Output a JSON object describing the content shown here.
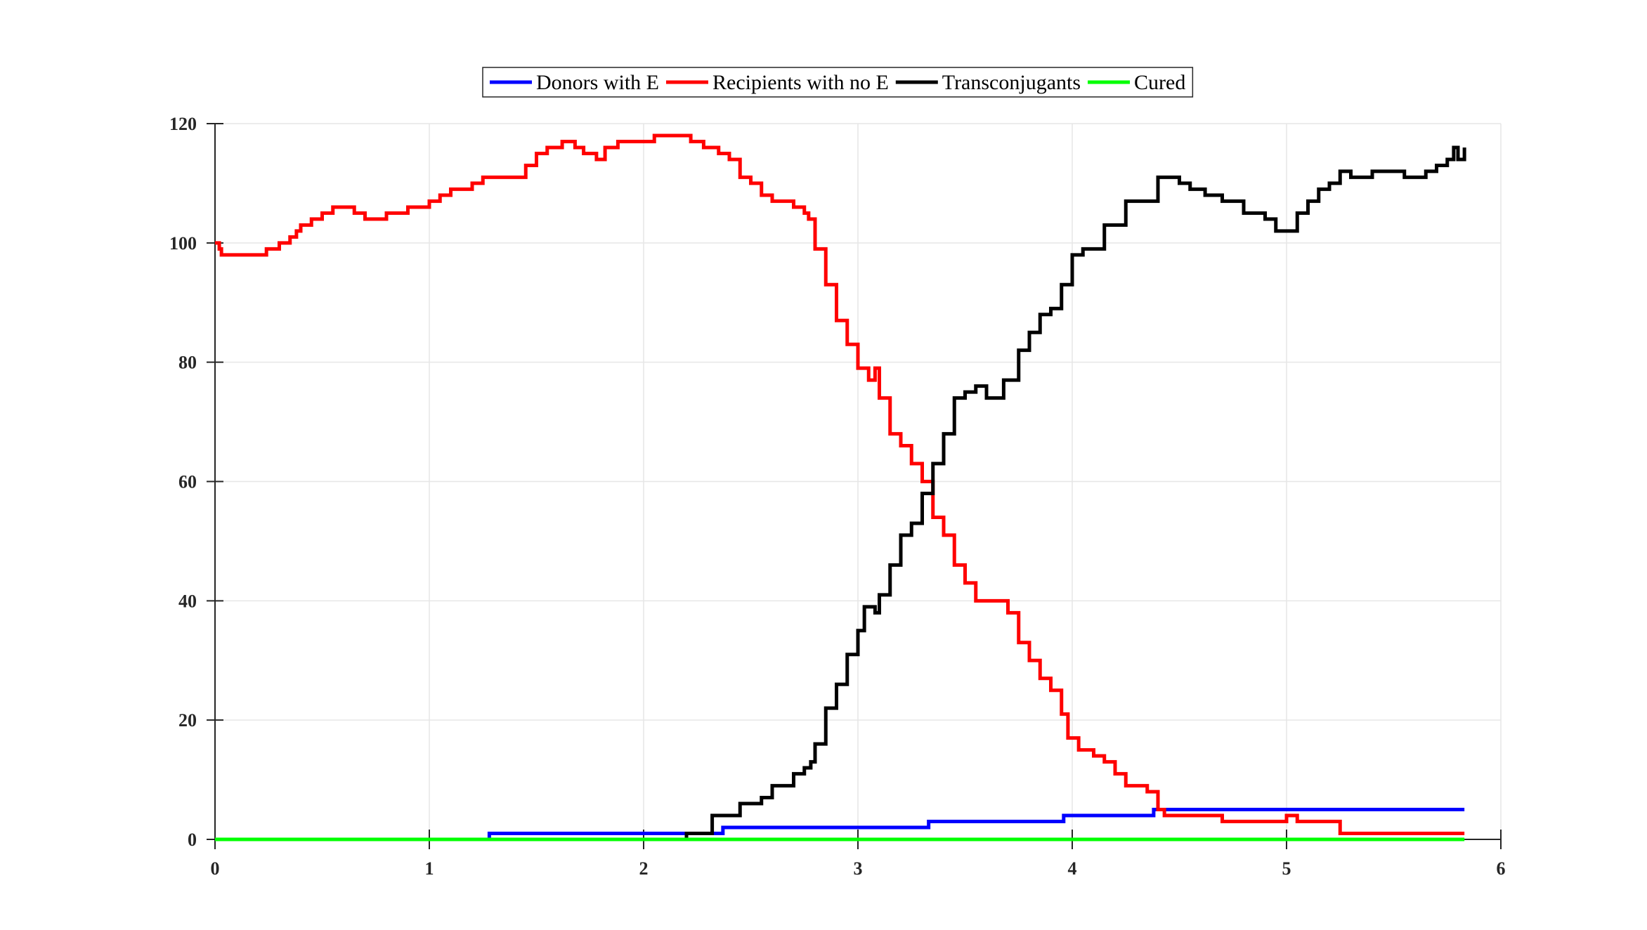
{
  "chart_data": {
    "type": "line",
    "title": "",
    "xlabel": "",
    "ylabel": "",
    "xlim": [
      0,
      6
    ],
    "ylim": [
      0,
      120
    ],
    "xticks": [
      0,
      1,
      2,
      3,
      4,
      5,
      6
    ],
    "yticks": [
      0,
      20,
      40,
      60,
      80,
      100,
      120
    ],
    "grid": true,
    "legend_position": "top-center",
    "series": [
      {
        "name": "Donors with E",
        "color": "#0000ff",
        "points": [
          [
            0,
            0
          ],
          [
            1.27,
            0
          ],
          [
            1.28,
            1
          ],
          [
            2.36,
            1
          ],
          [
            2.37,
            2
          ],
          [
            3.32,
            2
          ],
          [
            3.33,
            3
          ],
          [
            3.95,
            3
          ],
          [
            3.96,
            4
          ],
          [
            4.37,
            4
          ],
          [
            4.38,
            5
          ],
          [
            5.83,
            5
          ]
        ]
      },
      {
        "name": "Recipients with no E",
        "color": "#ff0000",
        "points": [
          [
            0,
            100
          ],
          [
            0.02,
            99
          ],
          [
            0.03,
            98
          ],
          [
            0.2,
            98
          ],
          [
            0.24,
            99
          ],
          [
            0.3,
            100
          ],
          [
            0.35,
            101
          ],
          [
            0.38,
            102
          ],
          [
            0.4,
            103
          ],
          [
            0.45,
            104
          ],
          [
            0.5,
            105
          ],
          [
            0.55,
            106
          ],
          [
            0.6,
            106
          ],
          [
            0.65,
            105
          ],
          [
            0.7,
            104
          ],
          [
            0.8,
            105
          ],
          [
            0.9,
            106
          ],
          [
            1.0,
            107
          ],
          [
            1.05,
            108
          ],
          [
            1.1,
            109
          ],
          [
            1.15,
            109
          ],
          [
            1.2,
            110
          ],
          [
            1.25,
            111
          ],
          [
            1.3,
            111
          ],
          [
            1.4,
            111
          ],
          [
            1.45,
            113
          ],
          [
            1.5,
            115
          ],
          [
            1.55,
            116
          ],
          [
            1.62,
            117
          ],
          [
            1.68,
            116
          ],
          [
            1.72,
            115
          ],
          [
            1.78,
            114
          ],
          [
            1.82,
            116
          ],
          [
            1.88,
            117
          ],
          [
            1.95,
            117
          ],
          [
            2.05,
            118
          ],
          [
            2.15,
            118
          ],
          [
            2.22,
            117
          ],
          [
            2.28,
            116
          ],
          [
            2.35,
            115
          ],
          [
            2.4,
            114
          ],
          [
            2.45,
            111
          ],
          [
            2.5,
            110
          ],
          [
            2.55,
            108
          ],
          [
            2.6,
            107
          ],
          [
            2.7,
            106
          ],
          [
            2.75,
            105
          ],
          [
            2.77,
            104
          ],
          [
            2.8,
            99
          ],
          [
            2.85,
            93
          ],
          [
            2.9,
            87
          ],
          [
            2.95,
            83
          ],
          [
            3.0,
            79
          ],
          [
            3.05,
            77
          ],
          [
            3.08,
            79
          ],
          [
            3.1,
            74
          ],
          [
            3.15,
            68
          ],
          [
            3.2,
            66
          ],
          [
            3.25,
            63
          ],
          [
            3.3,
            60
          ],
          [
            3.35,
            54
          ],
          [
            3.4,
            51
          ],
          [
            3.45,
            46
          ],
          [
            3.5,
            43
          ],
          [
            3.55,
            40
          ],
          [
            3.65,
            40
          ],
          [
            3.7,
            38
          ],
          [
            3.75,
            33
          ],
          [
            3.8,
            30
          ],
          [
            3.85,
            27
          ],
          [
            3.9,
            25
          ],
          [
            3.95,
            21
          ],
          [
            3.98,
            17
          ],
          [
            4.03,
            15
          ],
          [
            4.1,
            14
          ],
          [
            4.15,
            13
          ],
          [
            4.2,
            11
          ],
          [
            4.25,
            9
          ],
          [
            4.35,
            8
          ],
          [
            4.4,
            5
          ],
          [
            4.43,
            4
          ],
          [
            4.6,
            4
          ],
          [
            4.7,
            3
          ],
          [
            4.95,
            3
          ],
          [
            5.0,
            4
          ],
          [
            5.05,
            3
          ],
          [
            5.2,
            3
          ],
          [
            5.25,
            1
          ],
          [
            5.83,
            1
          ]
        ]
      },
      {
        "name": "Transconjugants",
        "color": "#000000",
        "points": [
          [
            2.14,
            0
          ],
          [
            2.2,
            1
          ],
          [
            2.28,
            1
          ],
          [
            2.32,
            4
          ],
          [
            2.45,
            6
          ],
          [
            2.55,
            7
          ],
          [
            2.6,
            9
          ],
          [
            2.65,
            9
          ],
          [
            2.7,
            11
          ],
          [
            2.75,
            12
          ],
          [
            2.78,
            13
          ],
          [
            2.8,
            16
          ],
          [
            2.85,
            22
          ],
          [
            2.9,
            26
          ],
          [
            2.95,
            31
          ],
          [
            3.0,
            35
          ],
          [
            3.03,
            39
          ],
          [
            3.08,
            38
          ],
          [
            3.1,
            41
          ],
          [
            3.15,
            46
          ],
          [
            3.2,
            51
          ],
          [
            3.25,
            53
          ],
          [
            3.3,
            58
          ],
          [
            3.35,
            63
          ],
          [
            3.4,
            68
          ],
          [
            3.45,
            74
          ],
          [
            3.5,
            75
          ],
          [
            3.55,
            76
          ],
          [
            3.6,
            74
          ],
          [
            3.68,
            77
          ],
          [
            3.75,
            82
          ],
          [
            3.8,
            85
          ],
          [
            3.85,
            88
          ],
          [
            3.9,
            89
          ],
          [
            3.95,
            93
          ],
          [
            4.0,
            98
          ],
          [
            4.05,
            99
          ],
          [
            4.15,
            103
          ],
          [
            4.25,
            107
          ],
          [
            4.35,
            107
          ],
          [
            4.4,
            111
          ],
          [
            4.45,
            111
          ],
          [
            4.5,
            110
          ],
          [
            4.55,
            109
          ],
          [
            4.62,
            108
          ],
          [
            4.7,
            107
          ],
          [
            4.8,
            105
          ],
          [
            4.9,
            104
          ],
          [
            4.95,
            102
          ],
          [
            5.0,
            102
          ],
          [
            5.05,
            105
          ],
          [
            5.1,
            107
          ],
          [
            5.15,
            109
          ],
          [
            5.2,
            110
          ],
          [
            5.25,
            112
          ],
          [
            5.3,
            111
          ],
          [
            5.4,
            112
          ],
          [
            5.5,
            112
          ],
          [
            5.55,
            111
          ],
          [
            5.65,
            112
          ],
          [
            5.7,
            113
          ],
          [
            5.75,
            114
          ],
          [
            5.78,
            116
          ],
          [
            5.8,
            114
          ],
          [
            5.83,
            116
          ]
        ]
      },
      {
        "name": "Cured",
        "color": "#00ff00",
        "points": [
          [
            0,
            0
          ],
          [
            5.83,
            0
          ]
        ]
      }
    ]
  }
}
